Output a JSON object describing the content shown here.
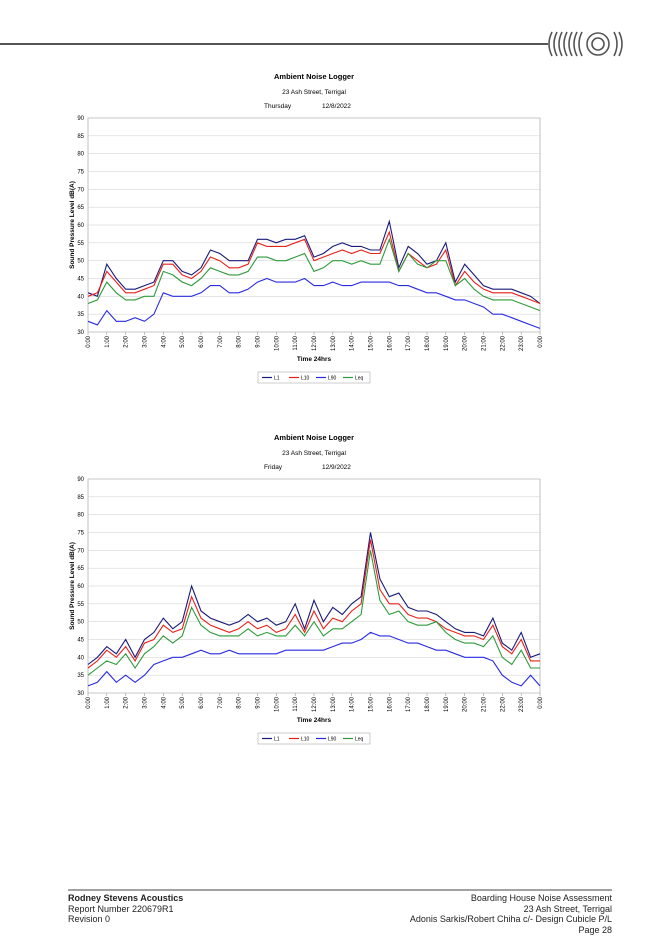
{
  "chart_data": [
    {
      "type": "line",
      "title": "Ambient Noise Logger",
      "subtitle": "23 Ash Street, Terrigal",
      "day": "Thursday",
      "date": "12/8/2022",
      "x_label": "Time 24hrs",
      "y_label": "Sound Pressure Level dB(A)",
      "categories": [
        "0:00",
        null,
        "1:00",
        null,
        "2:00",
        null,
        "3:00",
        null,
        "4:00",
        null,
        "5:00",
        null,
        "6:00",
        null,
        "7:00",
        null,
        "8:00",
        null,
        "9:00",
        null,
        "10:00",
        null,
        "11:00",
        null,
        "12:00",
        null,
        "13:00",
        null,
        "14:00",
        null,
        "15:00",
        null,
        "16:00",
        null,
        "17:00",
        null,
        "18:00",
        null,
        "19:00",
        null,
        "20:00",
        null,
        "21:00",
        null,
        "22:00",
        null,
        "23:00",
        null,
        "0:00"
      ],
      "ylim": [
        30,
        90
      ],
      "yticks": [
        30,
        35,
        40,
        45,
        50,
        55,
        60,
        65,
        70,
        75,
        80,
        85,
        90
      ],
      "grid": true,
      "series": [
        {
          "name": "L1",
          "color": "#1a1a7a",
          "values": [
            41,
            40,
            49,
            45,
            42,
            42,
            43,
            44,
            50,
            50,
            47,
            46,
            48,
            53,
            52,
            50,
            50,
            50,
            56,
            56,
            55,
            56,
            56,
            57,
            51,
            52,
            54,
            55,
            54,
            54,
            53,
            53,
            61,
            48,
            54,
            52,
            49,
            50,
            55,
            44,
            49,
            46,
            43,
            42,
            42,
            42,
            41,
            40,
            38
          ]
        },
        {
          "name": "L10",
          "color": "#e8211b",
          "values": [
            40,
            41,
            47,
            44,
            41,
            41,
            42,
            43,
            49,
            49,
            46,
            45,
            47,
            51,
            50,
            48,
            48,
            49,
            55,
            54,
            54,
            54,
            55,
            56,
            50,
            51,
            52,
            53,
            52,
            53,
            52,
            52,
            58,
            47,
            52,
            50,
            48,
            49,
            53,
            43,
            47,
            44,
            42,
            41,
            41,
            41,
            40,
            39,
            38
          ]
        },
        {
          "name": "L90",
          "color": "#2a2ae0",
          "values": [
            33,
            32,
            36,
            33,
            33,
            34,
            33,
            35,
            41,
            40,
            40,
            40,
            41,
            43,
            43,
            41,
            41,
            42,
            44,
            45,
            44,
            44,
            44,
            45,
            43,
            43,
            44,
            43,
            43,
            44,
            44,
            44,
            44,
            43,
            43,
            42,
            41,
            41,
            40,
            39,
            39,
            38,
            37,
            35,
            35,
            34,
            33,
            32,
            31
          ]
        },
        {
          "name": "Leq",
          "color": "#2e9a3a",
          "values": [
            38,
            39,
            44,
            41,
            39,
            39,
            40,
            40,
            47,
            46,
            44,
            43,
            45,
            48,
            47,
            46,
            46,
            47,
            51,
            51,
            50,
            50,
            51,
            52,
            47,
            48,
            50,
            50,
            49,
            50,
            49,
            49,
            56,
            47,
            52,
            49,
            48,
            50,
            50,
            43,
            45,
            42,
            40,
            39,
            39,
            39,
            38,
            37,
            36
          ]
        }
      ]
    },
    {
      "type": "line",
      "title": "Ambient Noise Logger",
      "subtitle": "23 Ash Street, Terrigal",
      "day": "Friday",
      "date": "12/9/2022",
      "x_label": "Time 24hrs",
      "y_label": "Sound Pressure Level dB(A)",
      "categories": [
        "0:00",
        null,
        "1:00",
        null,
        "2:00",
        null,
        "3:00",
        null,
        "4:00",
        null,
        "5:00",
        null,
        "6:00",
        null,
        "7:00",
        null,
        "8:00",
        null,
        "9:00",
        null,
        "10:00",
        null,
        "11:00",
        null,
        "12:00",
        null,
        "13:00",
        null,
        "14:00",
        null,
        "15:00",
        null,
        "16:00",
        null,
        "17:00",
        null,
        "18:00",
        null,
        "19:00",
        null,
        "20:00",
        null,
        "21:00",
        null,
        "22:00",
        null,
        "23:00",
        null,
        "0:00"
      ],
      "ylim": [
        30,
        90
      ],
      "yticks": [
        30,
        35,
        40,
        45,
        50,
        55,
        60,
        65,
        70,
        75,
        80,
        85,
        90
      ],
      "grid": true,
      "series": [
        {
          "name": "L1",
          "color": "#1a1a7a",
          "values": [
            38,
            40,
            43,
            41,
            45,
            40,
            45,
            47,
            51,
            48,
            50,
            60,
            53,
            51,
            50,
            49,
            50,
            52,
            50,
            51,
            49,
            50,
            55,
            48,
            56,
            50,
            54,
            52,
            55,
            57,
            75,
            62,
            57,
            58,
            54,
            53,
            53,
            52,
            50,
            48,
            47,
            47,
            46,
            51,
            44,
            42,
            47,
            40,
            41
          ]
        },
        {
          "name": "L10",
          "color": "#e8211b",
          "values": [
            37,
            39,
            42,
            40,
            43,
            39,
            44,
            45,
            49,
            47,
            48,
            57,
            51,
            49,
            48,
            47,
            48,
            50,
            48,
            49,
            47,
            48,
            52,
            47,
            53,
            48,
            51,
            50,
            53,
            55,
            73,
            59,
            55,
            55,
            52,
            51,
            51,
            50,
            48,
            47,
            46,
            46,
            45,
            49,
            43,
            41,
            45,
            39,
            39
          ]
        },
        {
          "name": "L90",
          "color": "#2a2ae0",
          "values": [
            32,
            33,
            36,
            33,
            35,
            33,
            35,
            38,
            39,
            40,
            40,
            41,
            42,
            41,
            41,
            42,
            41,
            41,
            41,
            41,
            41,
            42,
            42,
            42,
            42,
            42,
            43,
            44,
            44,
            45,
            47,
            46,
            46,
            45,
            44,
            44,
            43,
            42,
            42,
            41,
            40,
            40,
            40,
            39,
            35,
            33,
            32,
            35,
            32
          ]
        },
        {
          "name": "Leq",
          "color": "#2e9a3a",
          "values": [
            35,
            37,
            39,
            38,
            41,
            37,
            41,
            43,
            46,
            44,
            46,
            54,
            49,
            47,
            46,
            46,
            46,
            48,
            46,
            47,
            46,
            46,
            49,
            46,
            50,
            46,
            48,
            48,
            50,
            52,
            70,
            56,
            52,
            53,
            50,
            49,
            49,
            50,
            47,
            45,
            44,
            44,
            43,
            46,
            40,
            38,
            42,
            37,
            37
          ]
        }
      ]
    }
  ],
  "footer": {
    "company": "Rodney Stevens Acoustics",
    "report_number": "Report Number 220679R1",
    "revision": "Revision 0",
    "document_title": "Boarding House Noise Assessment",
    "address": "23 Ash Street, Terrigal",
    "client": "Adonis Sarkis/Robert Chiha c/- Design Cubicle P/L",
    "page": "Page 28"
  }
}
